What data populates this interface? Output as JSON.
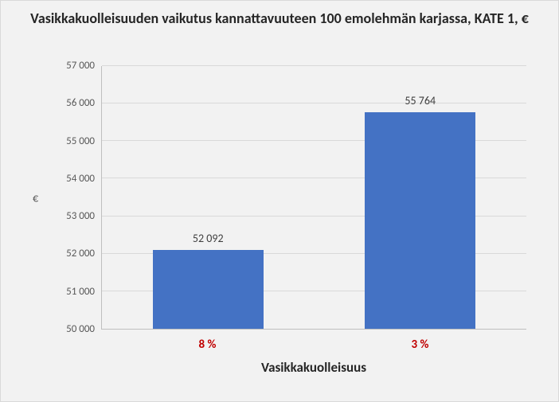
{
  "chart": {
    "type": "bar",
    "title": "Vasikkakuolleisuuden vaikutus kannattavuuteen 100 emolehmän karjassa, KATE 1, €",
    "title_fontsize": 18,
    "title_color": "#262626",
    "background_color": "#f2f2f2",
    "plot_background_color": "#f2f2f2",
    "border_color": "#d9d9d9",
    "y_axis": {
      "label": "€",
      "label_fontsize": 14,
      "label_color": "#595959",
      "min": 50000,
      "max": 57000,
      "tick_step": 1000,
      "ticks": [
        "50 000",
        "51 000",
        "52 000",
        "53 000",
        "54 000",
        "55 000",
        "56 000",
        "57 000"
      ],
      "tick_fontsize": 13,
      "tick_color": "#595959"
    },
    "x_axis": {
      "label": "Vasikkakuolleisuus",
      "label_fontsize": 17,
      "label_color": "#262626",
      "categories": [
        "8 %",
        "3 %"
      ],
      "category_fontsize": 15,
      "category_color": "#c00000",
      "category_fontweight": "bold"
    },
    "gridline_color": "#d9d9d9",
    "axis_line_color": "#bfbfbf",
    "series": [
      {
        "value": 52092,
        "label": "52 092",
        "color": "#4472c4"
      },
      {
        "value": 55764,
        "label": "55 764",
        "color": "#4472c4"
      }
    ],
    "data_label_fontsize": 14,
    "data_label_color": "#404040",
    "bar_width_ratio": 0.52
  }
}
